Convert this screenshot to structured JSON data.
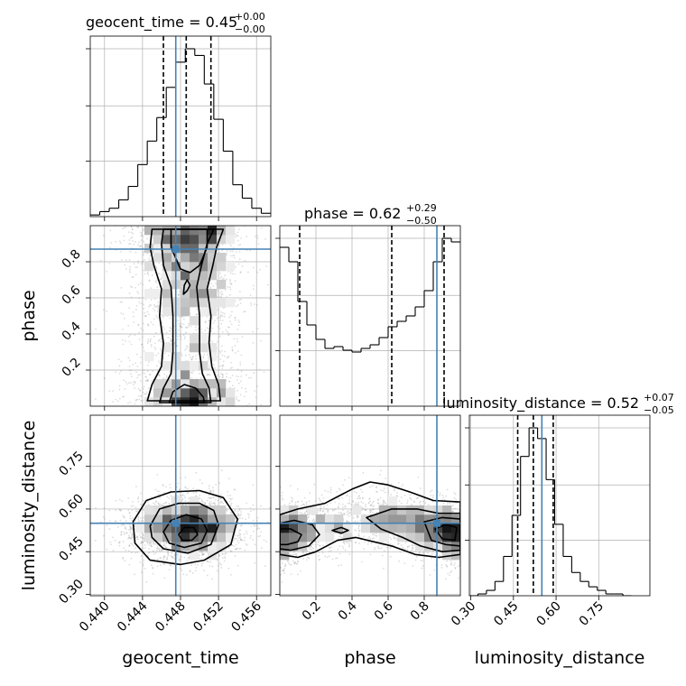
{
  "chart_data": {
    "type": "corner",
    "parameters": [
      "geocent_time",
      "phase",
      "luminosity_distance"
    ],
    "truths": {
      "geocent_time": 0.4475,
      "phase": 0.87,
      "luminosity_distance": 0.55
    },
    "panel_titles": {
      "geocent_time": {
        "name": "geocent_time",
        "value": "0.45",
        "plus": "+0.00",
        "minus": "−0.00"
      },
      "phase": {
        "name": "phase",
        "value": "0.62",
        "plus": "+0.29",
        "minus": "−0.50"
      },
      "luminosity_distance": {
        "name": "luminosity_distance",
        "value": "0.52",
        "plus": "+0.07",
        "minus": "−0.05"
      }
    },
    "axis_labels": {
      "x": [
        "geocent_time",
        "phase",
        "luminosity_distance"
      ],
      "y": [
        "phase",
        "luminosity_distance"
      ]
    },
    "ranges": {
      "geocent_time": [
        0.4385,
        0.4575
      ],
      "phase": [
        0.0,
        1.0
      ],
      "luminosity_distance": [
        0.295,
        0.93
      ]
    },
    "ticks": {
      "geocent_time": [
        "0.440",
        "0.444",
        "0.448",
        "0.452",
        "0.456"
      ],
      "phase": [
        "0.2",
        "0.4",
        "0.6",
        "0.8"
      ],
      "luminosity_distance": [
        "0.30",
        "0.45",
        "0.60",
        "0.75"
      ]
    },
    "quantiles": {
      "geocent_time": [
        0.4462,
        0.4486,
        0.4512
      ],
      "phase": [
        0.11,
        0.62,
        0.91
      ],
      "luminosity_distance": [
        0.465,
        0.52,
        0.59
      ]
    },
    "histograms": {
      "geocent_time": {
        "bin_edges": [
          0.4385,
          0.4395,
          0.4405,
          0.4415,
          0.4425,
          0.4435,
          0.4445,
          0.4455,
          0.4465,
          0.4475,
          0.4485,
          0.4495,
          0.4505,
          0.4515,
          0.4525,
          0.4535,
          0.4545,
          0.4555,
          0.4565,
          0.4575
        ],
        "counts": [
          1,
          3,
          5,
          10,
          18,
          31,
          45,
          59,
          77,
          92,
          100,
          96,
          79,
          58,
          39,
          19,
          11,
          5,
          2
        ]
      },
      "phase": {
        "bin_edges": [
          0.0,
          0.05,
          0.1,
          0.15,
          0.2,
          0.25,
          0.3,
          0.35,
          0.4,
          0.45,
          0.5,
          0.55,
          0.6,
          0.65,
          0.7,
          0.75,
          0.8,
          0.85,
          0.9,
          0.95,
          1.0
        ],
        "counts": [
          88,
          80,
          58,
          45,
          37,
          32,
          33,
          31,
          30,
          32,
          34,
          38,
          44,
          47,
          50,
          55,
          64,
          80,
          93,
          91
        ]
      },
      "luminosity_distance": {
        "bin_edges": [
          0.295,
          0.325,
          0.355,
          0.385,
          0.415,
          0.445,
          0.475,
          0.505,
          0.535,
          0.565,
          0.595,
          0.625,
          0.655,
          0.685,
          0.715,
          0.745,
          0.775,
          0.805,
          0.835,
          0.865
        ],
        "counts": [
          0,
          1,
          3,
          8,
          22,
          45,
          78,
          94,
          88,
          65,
          40,
          22,
          13,
          8,
          5,
          3,
          1,
          1,
          0
        ]
      }
    },
    "contours_2d": [
      {
        "x": "geocent_time",
        "y": "phase",
        "levels": [
          [
            [
              0.4445,
              0.03
            ],
            [
              0.445,
              0.12
            ],
            [
              0.446,
              0.22
            ],
            [
              0.4462,
              0.35
            ],
            [
              0.4458,
              0.5
            ],
            [
              0.446,
              0.65
            ],
            [
              0.4452,
              0.78
            ],
            [
              0.4448,
              0.88
            ],
            [
              0.445,
              0.98
            ],
            [
              0.4525,
              0.98
            ],
            [
              0.4518,
              0.88
            ],
            [
              0.4514,
              0.78
            ],
            [
              0.4508,
              0.65
            ],
            [
              0.4512,
              0.5
            ],
            [
              0.451,
              0.35
            ],
            [
              0.4513,
              0.22
            ],
            [
              0.452,
              0.12
            ],
            [
              0.4522,
              0.03
            ]
          ],
          [
            [
              0.4458,
              0.02
            ],
            [
              0.4462,
              0.1
            ],
            [
              0.447,
              0.18
            ],
            [
              0.4472,
              0.3
            ],
            [
              0.4472,
              0.5
            ],
            [
              0.447,
              0.66
            ],
            [
              0.4462,
              0.78
            ],
            [
              0.446,
              0.9
            ],
            [
              0.4462,
              0.98
            ],
            [
              0.4515,
              0.98
            ],
            [
              0.4508,
              0.9
            ],
            [
              0.4502,
              0.78
            ],
            [
              0.4497,
              0.66
            ],
            [
              0.45,
              0.5
            ],
            [
              0.45,
              0.3
            ],
            [
              0.4503,
              0.18
            ],
            [
              0.451,
              0.1
            ],
            [
              0.4512,
              0.02
            ]
          ],
          [
            [
              0.4468,
              0.02
            ],
            [
              0.4472,
              0.08
            ],
            [
              0.4484,
              0.12
            ],
            [
              0.4496,
              0.1
            ],
            [
              0.4504,
              0.05
            ],
            [
              0.4505,
              0.02
            ]
          ],
          [
            [
              0.447,
              0.98
            ],
            [
              0.447,
              0.88
            ],
            [
              0.448,
              0.76
            ],
            [
              0.449,
              0.74
            ],
            [
              0.45,
              0.78
            ],
            [
              0.4508,
              0.88
            ],
            [
              0.4508,
              0.98
            ]
          ],
          [
            [
              0.4483,
              0.62
            ],
            [
              0.4487,
              0.64
            ],
            [
              0.449,
              0.67
            ],
            [
              0.4487,
              0.7
            ],
            [
              0.4484,
              0.67
            ]
          ]
        ]
      },
      {
        "x": "geocent_time",
        "y": "luminosity_distance",
        "levels": [
          [
            [
              0.443,
              0.555
            ],
            [
              0.4444,
              0.63
            ],
            [
              0.447,
              0.66
            ],
            [
              0.45,
              0.665
            ],
            [
              0.4525,
              0.64
            ],
            [
              0.454,
              0.565
            ],
            [
              0.4533,
              0.475
            ],
            [
              0.4505,
              0.42
            ],
            [
              0.448,
              0.405
            ],
            [
              0.4448,
              0.42
            ],
            [
              0.4432,
              0.48
            ]
          ],
          [
            [
              0.4448,
              0.54
            ],
            [
              0.4458,
              0.6
            ],
            [
              0.4478,
              0.62
            ],
            [
              0.45,
              0.62
            ],
            [
              0.4515,
              0.595
            ],
            [
              0.452,
              0.545
            ],
            [
              0.4512,
              0.475
            ],
            [
              0.4488,
              0.445
            ],
            [
              0.4462,
              0.46
            ],
            [
              0.445,
              0.5
            ]
          ],
          [
            [
              0.4462,
              0.52
            ],
            [
              0.447,
              0.56
            ],
            [
              0.4486,
              0.58
            ],
            [
              0.4502,
              0.565
            ],
            [
              0.4508,
              0.525
            ],
            [
              0.4502,
              0.48
            ],
            [
              0.4484,
              0.465
            ],
            [
              0.4468,
              0.48
            ]
          ],
          [
            [
              0.4478,
              0.51
            ],
            [
              0.4484,
              0.535
            ],
            [
              0.4494,
              0.535
            ],
            [
              0.4498,
              0.51
            ],
            [
              0.4492,
              0.49
            ],
            [
              0.4482,
              0.49
            ]
          ]
        ]
      },
      {
        "x": "phase",
        "y": "luminosity_distance",
        "levels": [
          [
            [
              0.0,
              0.44
            ],
            [
              0.0,
              0.58
            ],
            [
              0.1,
              0.6
            ],
            [
              0.25,
              0.62
            ],
            [
              0.4,
              0.67
            ],
            [
              0.5,
              0.695
            ],
            [
              0.6,
              0.685
            ],
            [
              0.72,
              0.66
            ],
            [
              0.85,
              0.63
            ],
            [
              1.0,
              0.625
            ],
            [
              1.0,
              0.44
            ],
            [
              0.88,
              0.43
            ],
            [
              0.75,
              0.44
            ],
            [
              0.62,
              0.47
            ],
            [
              0.52,
              0.485
            ],
            [
              0.42,
              0.5
            ],
            [
              0.32,
              0.49
            ],
            [
              0.2,
              0.45
            ],
            [
              0.1,
              0.43
            ]
          ],
          [
            [
              0.0,
              0.46
            ],
            [
              0.0,
              0.55
            ],
            [
              0.08,
              0.56
            ],
            [
              0.18,
              0.545
            ],
            [
              0.22,
              0.51
            ],
            [
              0.16,
              0.47
            ],
            [
              0.06,
              0.455
            ]
          ],
          [
            [
              0.0,
              0.475
            ],
            [
              0.0,
              0.53
            ],
            [
              0.06,
              0.53
            ],
            [
              0.12,
              0.51
            ],
            [
              0.1,
              0.485
            ],
            [
              0.04,
              0.475
            ]
          ],
          [
            [
              0.48,
              0.57
            ],
            [
              0.62,
              0.6
            ],
            [
              0.76,
              0.6
            ],
            [
              0.88,
              0.585
            ],
            [
              1.0,
              0.585
            ],
            [
              1.0,
              0.455
            ],
            [
              0.9,
              0.45
            ],
            [
              0.78,
              0.47
            ],
            [
              0.68,
              0.5
            ],
            [
              0.56,
              0.53
            ]
          ],
          [
            [
              0.8,
              0.555
            ],
            [
              0.9,
              0.57
            ],
            [
              1.0,
              0.565
            ],
            [
              1.0,
              0.47
            ],
            [
              0.92,
              0.475
            ],
            [
              0.84,
              0.49
            ]
          ],
          [
            [
              0.86,
              0.53
            ],
            [
              0.92,
              0.545
            ],
            [
              0.98,
              0.535
            ],
            [
              0.97,
              0.49
            ],
            [
              0.9,
              0.495
            ]
          ],
          [
            [
              0.29,
              0.525
            ],
            [
              0.34,
              0.535
            ],
            [
              0.38,
              0.525
            ],
            [
              0.34,
              0.515
            ]
          ]
        ]
      }
    ],
    "grid": true,
    "colors": {
      "truth": "#4682b4",
      "line": "#000000",
      "grid": "#b0b0b0",
      "scatter": "#9e9e9e"
    }
  }
}
